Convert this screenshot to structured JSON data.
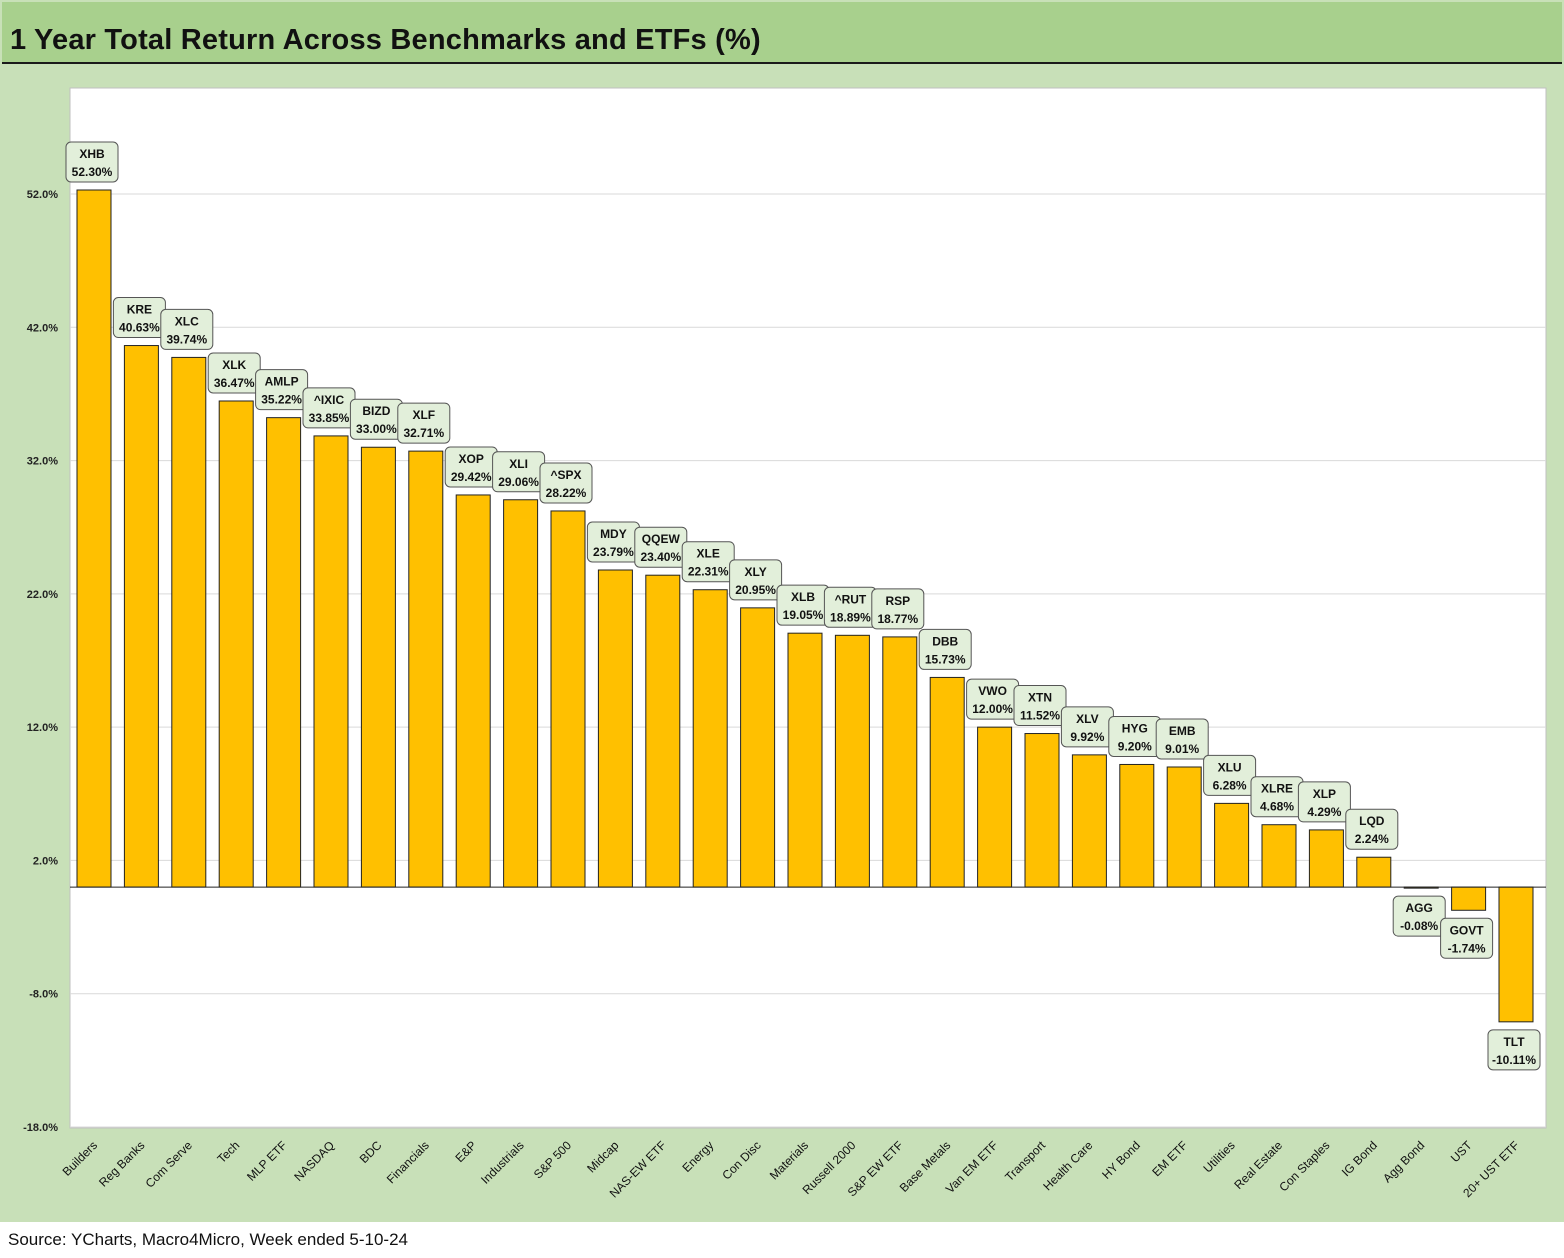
{
  "header": {
    "title": "1 Year Total Return Across Benchmarks and ETFs (%)"
  },
  "footer": {
    "source": "Source: YCharts, Macro4Micro, Week ended 5-10-24"
  },
  "colors": {
    "bar": "#ffc000",
    "frame": "#c8e0b8",
    "title_bar": "#a8d08d",
    "label_box": "#e2efda"
  },
  "chart_data": {
    "type": "bar",
    "title": "1 Year Total Return Across Benchmarks and ETFs (%)",
    "ylim": [
      -18,
      58
    ],
    "yticks": [
      -18,
      -8,
      2,
      12,
      22,
      32,
      42,
      52
    ],
    "ytick_labels": [
      "-18.0%",
      "-8.0%",
      "2.0%",
      "12.0%",
      "22.0%",
      "32.0%",
      "42.0%",
      "52.0%"
    ],
    "grid": true,
    "categories": [
      "Builders",
      "Reg Banks",
      "Com Serve",
      "Tech",
      "MLP ETF",
      "NASDAQ",
      "BDC",
      "Financials",
      "E&P",
      "Industrials",
      "S&P 500",
      "Midcap",
      "NAS-EW ETF",
      "Energy",
      "Con Disc",
      "Materials",
      "Russell 2000",
      "S&P EW ETF",
      "Base Metals",
      "Van EM ETF",
      "Transport",
      "Health Care",
      "HY Bond",
      "EM ETF",
      "Utilities",
      "Real Estate",
      "Con Staples",
      "IG Bond",
      "Agg Bond",
      "UST",
      "20+ UST ETF"
    ],
    "tickers": [
      "XHB",
      "KRE",
      "XLC",
      "XLK",
      "AMLP",
      "^IXIC",
      "BIZD",
      "XLF",
      "XOP",
      "XLI",
      "^SPX",
      "MDY",
      "QQEW",
      "XLE",
      "XLY",
      "XLB",
      "^RUT",
      "RSP",
      "DBB",
      "VWO",
      "XTN",
      "XLV",
      "HYG",
      "EMB",
      "XLU",
      "XLRE",
      "XLP",
      "LQD",
      "AGG",
      "GOVT",
      "TLT"
    ],
    "values": [
      52.3,
      40.63,
      39.74,
      36.47,
      35.22,
      33.85,
      33.0,
      32.71,
      29.42,
      29.06,
      28.22,
      23.79,
      23.4,
      22.31,
      20.95,
      19.05,
      18.89,
      18.77,
      15.73,
      12.0,
      11.52,
      9.92,
      9.2,
      9.01,
      6.28,
      4.68,
      4.29,
      2.24,
      -0.08,
      -1.74,
      -10.11
    ],
    "value_labels": [
      "52.30%",
      "40.63%",
      "39.74%",
      "36.47%",
      "35.22%",
      "33.85%",
      "33.00%",
      "32.71%",
      "29.42%",
      "29.06%",
      "28.22%",
      "23.79%",
      "23.40%",
      "22.31%",
      "20.95%",
      "19.05%",
      "18.89%",
      "18.77%",
      "15.73%",
      "12.00%",
      "11.52%",
      "9.92%",
      "9.20%",
      "9.01%",
      "6.28%",
      "4.68%",
      "4.29%",
      "2.24%",
      "-0.08%",
      "-1.74%",
      "-10.11%"
    ]
  }
}
